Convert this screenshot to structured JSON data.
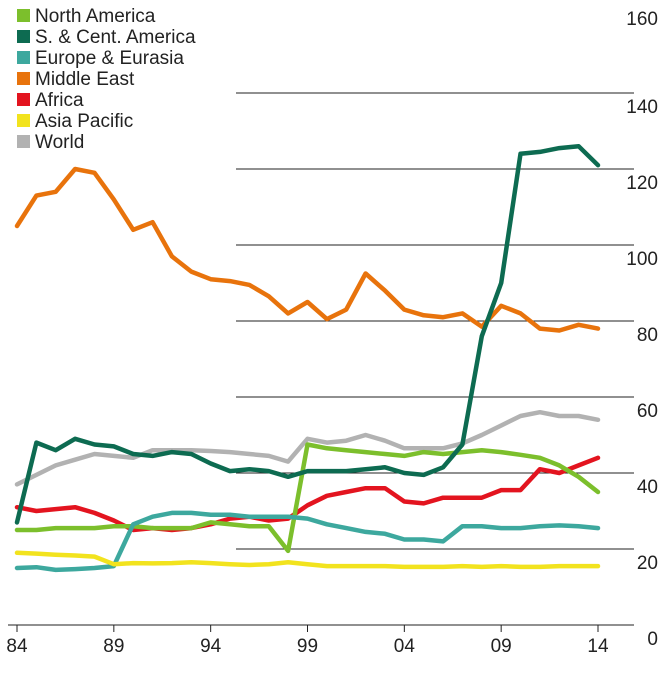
{
  "chart_data": {
    "type": "line",
    "title": "",
    "xlabel": "",
    "ylabel": "",
    "xlim": [
      1984,
      2014
    ],
    "ylim": [
      0,
      160
    ],
    "x_ticks": [
      {
        "value": 1984,
        "label": "84"
      },
      {
        "value": 1989,
        "label": "89"
      },
      {
        "value": 1994,
        "label": "94"
      },
      {
        "value": 1999,
        "label": "99"
      },
      {
        "value": 2004,
        "label": "04"
      },
      {
        "value": 2009,
        "label": "09"
      },
      {
        "value": 2014,
        "label": "14"
      }
    ],
    "y_ticks": [
      0,
      20,
      40,
      60,
      80,
      100,
      120,
      140,
      160
    ],
    "grid": "horizontal",
    "legend_position": "top-left",
    "x": [
      1984,
      1985,
      1986,
      1987,
      1988,
      1989,
      1990,
      1991,
      1992,
      1993,
      1994,
      1995,
      1996,
      1997,
      1998,
      1999,
      2000,
      2001,
      2002,
      2003,
      2004,
      2005,
      2006,
      2007,
      2008,
      2009,
      2010,
      2011,
      2012,
      2013,
      2014
    ],
    "series": [
      {
        "name": "Middle East",
        "color": "#e8730c",
        "values": [
          105,
          113,
          114,
          120,
          119,
          112,
          104,
          106,
          97,
          93,
          91,
          90.5,
          89.5,
          86.5,
          82,
          85,
          80.5,
          83,
          92.5,
          88,
          83,
          81.5,
          81,
          82,
          78.5,
          84,
          82,
          78,
          77.5,
          79,
          78
        ]
      },
      {
        "name": "World",
        "color": "#b2b2b2",
        "values": [
          37,
          39.5,
          42,
          43.5,
          45,
          44.5,
          44,
          46,
          46,
          46,
          45.8,
          45.5,
          45,
          44.5,
          43,
          49,
          48,
          48.5,
          50,
          48.5,
          46.5,
          46.5,
          46.5,
          47.8,
          50,
          52.5,
          55,
          56,
          55,
          55,
          54
        ]
      },
      {
        "name": "Africa",
        "color": "#e3141f",
        "values": [
          31,
          30,
          30.5,
          31,
          29.5,
          27.5,
          25,
          25.5,
          25,
          25.5,
          26.5,
          28,
          28.5,
          27.5,
          28,
          31.5,
          34,
          35,
          36,
          36,
          32.5,
          32,
          33.5,
          33.5,
          33.5,
          35.5,
          35.5,
          41,
          40,
          42,
          44
        ]
      },
      {
        "name": "North America",
        "color": "#7cbf2c",
        "values": [
          25,
          25,
          25.5,
          25.5,
          25.5,
          26,
          26,
          25.5,
          25.5,
          25.5,
          27,
          26.5,
          26,
          26,
          19.5,
          47.5,
          46.5,
          46,
          45.5,
          45,
          44.5,
          45.5,
          45,
          45.5,
          46,
          45.5,
          44.8,
          44,
          42,
          39,
          35
        ]
      },
      {
        "name": "Europe & Eurasia",
        "color": "#3da89e",
        "values": [
          15,
          15.2,
          14.5,
          14.7,
          15,
          15.5,
          26.5,
          28.5,
          29.5,
          29.5,
          29,
          29,
          28.5,
          28.5,
          28.5,
          28,
          26.5,
          25.5,
          24.5,
          24,
          22.5,
          22.5,
          22,
          26,
          26,
          25.5,
          25.5,
          26,
          26.2,
          26,
          25.5
        ]
      },
      {
        "name": "Asia Pacific",
        "color": "#f2e31e",
        "values": [
          19,
          18.8,
          18.5,
          18.3,
          18,
          16,
          16.3,
          16.2,
          16.3,
          16.5,
          16.3,
          16,
          15.8,
          16,
          16.5,
          16,
          15.5,
          15.5,
          15.5,
          15.5,
          15.3,
          15.3,
          15.3,
          15.5,
          15.3,
          15.5,
          15.3,
          15.3,
          15.5,
          15.5,
          15.5
        ]
      },
      {
        "name": "S. & Cent. America",
        "color": "#0d6b51",
        "values": [
          27,
          48,
          46,
          49,
          47.5,
          47,
          45,
          44.5,
          45.5,
          45,
          42.5,
          40.5,
          41,
          40.5,
          39,
          40.5,
          40.5,
          40.5,
          41,
          41.5,
          40,
          39.5,
          41.5,
          47.5,
          76,
          90,
          124,
          124.5,
          125.5,
          126,
          121
        ]
      }
    ],
    "legend": [
      {
        "name": "North America",
        "color": "#7cbf2c"
      },
      {
        "name": "S. & Cent. America",
        "color": "#0d6b51"
      },
      {
        "name": "Europe & Eurasia",
        "color": "#3da89e"
      },
      {
        "name": "Middle East",
        "color": "#e8730c"
      },
      {
        "name": "Africa",
        "color": "#e3141f"
      },
      {
        "name": "Asia Pacific",
        "color": "#f2e31e"
      },
      {
        "name": "World",
        "color": "#b2b2b2"
      }
    ]
  }
}
